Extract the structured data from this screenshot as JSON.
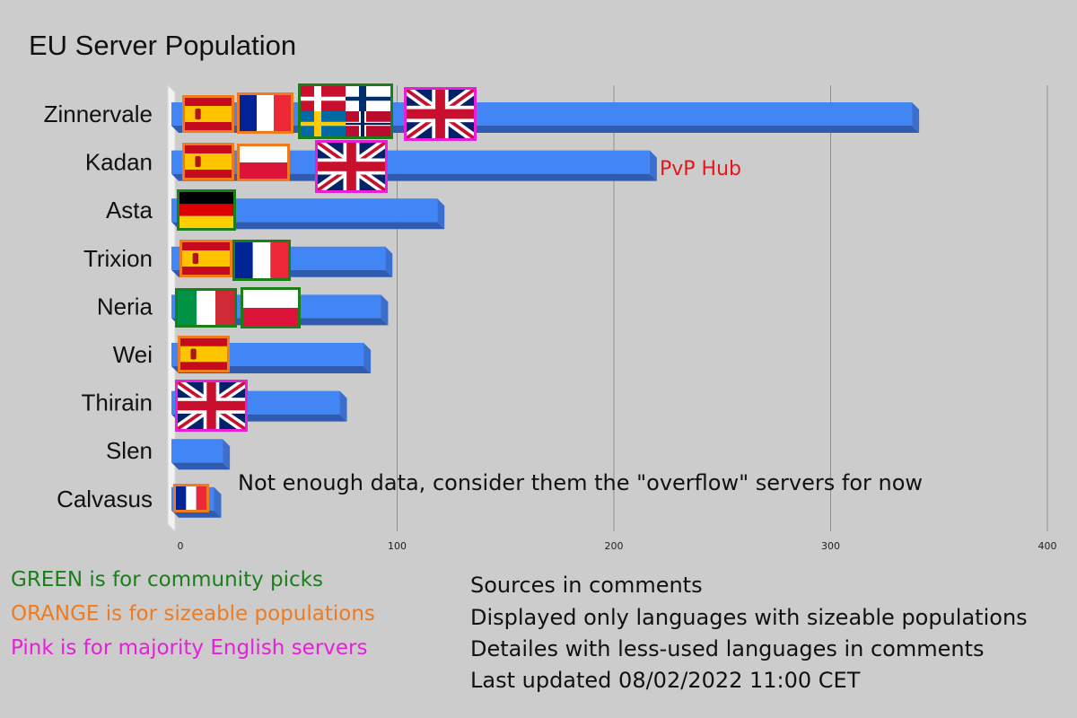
{
  "chart_data": {
    "type": "bar",
    "orientation": "horizontal",
    "title": "EU Server Population",
    "categories": [
      "Zinnervale",
      "Kadan",
      "Asta",
      "Trixion",
      "Neria",
      "Wei",
      "Thirain",
      "Slen",
      "Calvasus"
    ],
    "values": [
      340,
      219,
      121,
      97,
      95,
      87,
      76,
      22,
      18
    ],
    "xlim": [
      0,
      400
    ],
    "xticks": [
      "0",
      "100",
      "200",
      "300",
      "400"
    ],
    "grid": "vertical",
    "bar_color": "#4285f4",
    "annotations": [
      {
        "text": "PvP Hub",
        "color": "#e8141b",
        "category": "Kadan"
      },
      {
        "text": "Not enough data, consider them the \"overflow\" servers for now",
        "color": "#111111",
        "category": "Slen"
      }
    ],
    "flags": {
      "Zinnervale": [
        {
          "flag": "spain-flag",
          "border": "orange"
        },
        {
          "flag": "france-flag",
          "border": "orange"
        },
        {
          "flag": "nordic-quad-flag",
          "border": "green"
        },
        {
          "flag": "uk-flag",
          "border": "pink"
        }
      ],
      "Kadan": [
        {
          "flag": "spain-flag",
          "border": "orange"
        },
        {
          "flag": "poland-flag",
          "border": "orange"
        },
        {
          "flag": "uk-flag",
          "border": "pink"
        }
      ],
      "Asta": [
        {
          "flag": "germany-flag",
          "border": "green"
        }
      ],
      "Trixion": [
        {
          "flag": "spain-flag",
          "border": "orange"
        },
        {
          "flag": "france-flag",
          "border": "green"
        }
      ],
      "Neria": [
        {
          "flag": "italy-flag",
          "border": "green"
        },
        {
          "flag": "poland-flag",
          "border": "green"
        }
      ],
      "Wei": [
        {
          "flag": "spain-flag",
          "border": "orange"
        }
      ],
      "Thirain": [
        {
          "flag": "uk-flag",
          "border": "pink"
        }
      ],
      "Slen": [],
      "Calvasus": [
        {
          "flag": "france-flag",
          "border": "orange"
        }
      ]
    }
  },
  "colors": {
    "green": "#1a7f1a",
    "orange": "#f07a1e",
    "pink": "#e81ed8"
  },
  "legend": [
    {
      "text": "GREEN is for community picks",
      "color": "#1a7f1a"
    },
    {
      "text": "ORANGE is for sizeable populations",
      "color": "#f07a1e"
    },
    {
      "text": "Pink is for majority English servers",
      "color": "#e81ed8"
    }
  ],
  "notes": [
    "Sources in comments",
    "Displayed only languages with sizeable populations",
    "Detailes with less-used languages in comments",
    "Last updated 08/02/2022 11:00 CET"
  ]
}
